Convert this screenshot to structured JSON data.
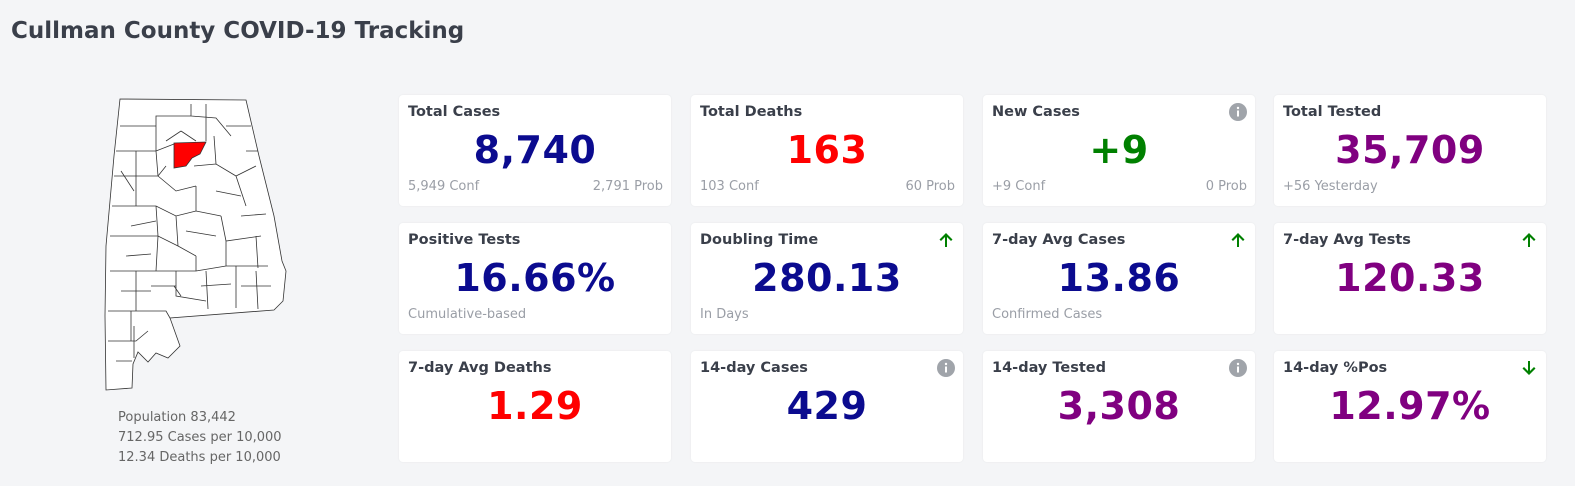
{
  "page": {
    "title": "Cullman County COVID-19 Tracking"
  },
  "colors": {
    "blue": "#0b0b8f",
    "red": "#ff0000",
    "green": "#008000",
    "purple": "#800080",
    "highlight_county": "#ff0000"
  },
  "map": {
    "highlighted_county": "Cullman"
  },
  "population_stats": {
    "population": "Population 83,442",
    "cases_per_10k": "712.95 Cases per 10,000",
    "deaths_per_10k": "12.34 Deaths per 10,000"
  },
  "cards": {
    "total_cases": {
      "label": "Total Cases",
      "value": "8,740",
      "sub_left": "5,949 Conf",
      "sub_right": "2,791 Prob",
      "color": "blue"
    },
    "total_deaths": {
      "label": "Total Deaths",
      "value": "163",
      "sub_left": "103 Conf",
      "sub_right": "60 Prob",
      "color": "red"
    },
    "new_cases": {
      "label": "New Cases",
      "value": "+9",
      "sub_left": "+9 Conf",
      "sub_right": "0 Prob",
      "color": "green",
      "icon": "info-icon"
    },
    "total_tested": {
      "label": "Total Tested",
      "value": "35,709",
      "sub_left": "+56 Yesterday",
      "color": "purple"
    },
    "positive_tests": {
      "label": "Positive Tests",
      "value": "16.66%",
      "sub_left": "Cumulative-based",
      "color": "blue"
    },
    "doubling_time": {
      "label": "Doubling Time",
      "value": "280.13",
      "sub_left": "In Days",
      "color": "blue",
      "icon": "arrow-up-icon"
    },
    "avg_cases_7day": {
      "label": "7-day Avg Cases",
      "value": "13.86",
      "sub_left": "Confirmed Cases",
      "color": "blue",
      "icon": "arrow-up-icon"
    },
    "avg_tests_7day": {
      "label": "7-day Avg Tests",
      "value": "120.33",
      "color": "purple",
      "icon": "arrow-up-icon"
    },
    "avg_deaths_7day": {
      "label": "7-day Avg Deaths",
      "value": "1.29",
      "color": "red"
    },
    "cases_14day": {
      "label": "14-day Cases",
      "value": "429",
      "color": "blue",
      "icon": "info-icon"
    },
    "tested_14day": {
      "label": "14-day Tested",
      "value": "3,308",
      "color": "purple",
      "icon": "info-icon"
    },
    "pos_14day": {
      "label": "14-day %Pos",
      "value": "12.97%",
      "color": "purple",
      "icon": "arrow-down-icon"
    }
  }
}
